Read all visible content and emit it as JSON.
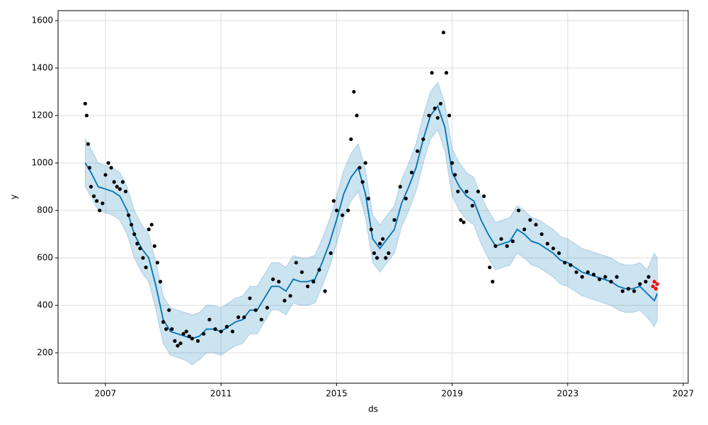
{
  "chart_data": {
    "type": "line",
    "xlabel": "ds",
    "ylabel": "y",
    "xlim": [
      2005.36,
      2027.17
    ],
    "ylim": [
      72,
      1642
    ],
    "xticks": [
      2007,
      2011,
      2015,
      2019,
      2023,
      2027
    ],
    "yticks": [
      200,
      400,
      600,
      800,
      1000,
      1200,
      1400,
      1600
    ],
    "grid": true,
    "band": {
      "color": "#0072B2",
      "x": [
        2006.3,
        2006.5,
        2006.75,
        2007,
        2007.25,
        2007.5,
        2007.75,
        2008,
        2008.25,
        2008.5,
        2008.75,
        2009,
        2009.25,
        2009.5,
        2009.75,
        2010,
        2010.25,
        2010.5,
        2010.75,
        2011,
        2011.25,
        2011.5,
        2011.75,
        2012,
        2012.25,
        2012.5,
        2012.75,
        2013,
        2013.25,
        2013.5,
        2013.75,
        2014,
        2014.25,
        2014.5,
        2014.75,
        2015,
        2015.25,
        2015.5,
        2015.75,
        2016,
        2016.25,
        2016.5,
        2016.75,
        2017,
        2017.25,
        2017.5,
        2017.75,
        2018,
        2018.25,
        2018.5,
        2018.75,
        2019,
        2019.25,
        2019.5,
        2019.75,
        2020,
        2020.25,
        2020.5,
        2020.75,
        2021,
        2021.25,
        2021.5,
        2021.75,
        2022,
        2022.25,
        2022.5,
        2022.75,
        2023,
        2023.25,
        2023.5,
        2023.75,
        2024,
        2024.25,
        2024.5,
        2024.75,
        2025,
        2025.25,
        2025.5,
        2025.75,
        2026,
        2026.1
      ],
      "lower": [
        900,
        860,
        800,
        790,
        780,
        760,
        700,
        600,
        540,
        500,
        380,
        240,
        190,
        180,
        170,
        150,
        170,
        200,
        200,
        190,
        210,
        230,
        240,
        280,
        280,
        330,
        380,
        380,
        360,
        410,
        400,
        400,
        410,
        480,
        560,
        660,
        770,
        840,
        880,
        770,
        580,
        540,
        580,
        620,
        730,
        800,
        880,
        1000,
        1100,
        1140,
        1050,
        860,
        800,
        760,
        740,
        660,
        600,
        550,
        560,
        570,
        620,
        600,
        570,
        560,
        540,
        520,
        490,
        480,
        460,
        440,
        430,
        420,
        410,
        400,
        380,
        370,
        370,
        380,
        350,
        310,
        340
      ],
      "upper": [
        1100,
        1060,
        1000,
        990,
        980,
        960,
        900,
        800,
        740,
        700,
        580,
        440,
        390,
        380,
        370,
        360,
        370,
        400,
        400,
        390,
        410,
        430,
        440,
        480,
        480,
        530,
        580,
        580,
        560,
        610,
        600,
        600,
        610,
        680,
        760,
        860,
        970,
        1040,
        1080,
        970,
        780,
        740,
        780,
        820,
        930,
        1000,
        1080,
        1200,
        1300,
        1340,
        1250,
        1060,
        1000,
        960,
        940,
        860,
        800,
        750,
        760,
        770,
        820,
        800,
        770,
        760,
        740,
        720,
        690,
        680,
        660,
        640,
        630,
        620,
        610,
        600,
        580,
        570,
        570,
        580,
        550,
        620,
        600
      ]
    },
    "series": [
      {
        "color": "#000000",
        "marker": "dot",
        "x": [
          2006.3,
          2006.35,
          2006.4,
          2006.45,
          2006.5,
          2006.6,
          2006.7,
          2006.8,
          2006.9,
          2007,
          2007.1,
          2007.2,
          2007.3,
          2007.4,
          2007.5,
          2007.6,
          2007.7,
          2007.8,
          2007.9,
          2008,
          2008.1,
          2008.2,
          2008.3,
          2008.4,
          2008.5,
          2008.6,
          2008.7,
          2008.8,
          2008.9,
          2009,
          2009.1,
          2009.2,
          2009.3,
          2009.4,
          2009.5,
          2009.6,
          2009.7,
          2009.8,
          2009.9,
          2010,
          2010.2,
          2010.4,
          2010.6,
          2010.8,
          2011,
          2011.2,
          2011.4,
          2011.6,
          2011.8,
          2012,
          2012.2,
          2012.4,
          2012.6,
          2012.8,
          2013,
          2013.2,
          2013.4,
          2013.6,
          2013.8,
          2014,
          2014.2,
          2014.4,
          2014.6,
          2014.8,
          2014.9,
          2015,
          2015.2,
          2015.4,
          2015.5,
          2015.6,
          2015.7,
          2015.8,
          2015.9,
          2016,
          2016.1,
          2016.2,
          2016.3,
          2016.4,
          2016.5,
          2016.6,
          2016.7,
          2016.8,
          2017,
          2017.2,
          2017.4,
          2017.6,
          2017.8,
          2018,
          2018.2,
          2018.3,
          2018.4,
          2018.5,
          2018.6,
          2018.7,
          2018.8,
          2018.9,
          2019,
          2019.1,
          2019.2,
          2019.3,
          2019.4,
          2019.5,
          2019.7,
          2019.9,
          2020.1,
          2020.3,
          2020.4,
          2020.5,
          2020.7,
          2020.9,
          2021.1,
          2021.3,
          2021.5,
          2021.7,
          2021.9,
          2022.1,
          2022.3,
          2022.5,
          2022.7,
          2022.9,
          2023.1,
          2023.3,
          2023.5,
          2023.7,
          2023.9,
          2024.1,
          2024.3,
          2024.5,
          2024.7,
          2024.9,
          2025.1,
          2025.3,
          2025.5,
          2025.7,
          2025.8
        ],
        "values": [
          1250,
          1200,
          1080,
          980,
          900,
          860,
          840,
          800,
          830,
          950,
          1000,
          980,
          920,
          900,
          890,
          920,
          880,
          780,
          740,
          700,
          660,
          640,
          600,
          560,
          720,
          740,
          650,
          580,
          500,
          330,
          300,
          380,
          300,
          250,
          230,
          240,
          280,
          290,
          270,
          260,
          250,
          280,
          340,
          300,
          290,
          310,
          290,
          350,
          350,
          430,
          380,
          340,
          390,
          510,
          500,
          420,
          440,
          580,
          540,
          480,
          500,
          550,
          460,
          620,
          840,
          800,
          780,
          800,
          1100,
          1300,
          1200,
          980,
          920,
          1000,
          850,
          720,
          620,
          600,
          660,
          680,
          600,
          620,
          760,
          900,
          850,
          960,
          1050,
          1100,
          1200,
          1380,
          1230,
          1190,
          1250,
          1550,
          1380,
          1200,
          1000,
          950,
          880,
          760,
          750,
          880,
          820,
          880,
          860,
          560,
          500,
          650,
          680,
          650,
          670,
          800,
          720,
          760,
          740,
          700,
          660,
          640,
          620,
          580,
          570,
          540,
          520,
          540,
          530,
          510,
          520,
          500,
          520,
          460,
          470,
          460,
          490,
          500,
          520
        ]
      },
      {
        "color": "#0072B2",
        "marker": "line",
        "x": [
          2006.3,
          2006.5,
          2006.75,
          2007,
          2007.25,
          2007.5,
          2007.75,
          2008,
          2008.25,
          2008.5,
          2008.75,
          2009,
          2009.25,
          2009.5,
          2009.75,
          2010,
          2010.25,
          2010.5,
          2010.75,
          2011,
          2011.25,
          2011.5,
          2011.75,
          2012,
          2012.25,
          2012.5,
          2012.75,
          2013,
          2013.25,
          2013.5,
          2013.75,
          2014,
          2014.25,
          2014.5,
          2014.75,
          2015,
          2015.25,
          2015.5,
          2015.75,
          2016,
          2016.25,
          2016.5,
          2016.75,
          2017,
          2017.25,
          2017.5,
          2017.75,
          2018,
          2018.25,
          2018.5,
          2018.75,
          2019,
          2019.25,
          2019.5,
          2019.75,
          2020,
          2020.25,
          2020.5,
          2020.75,
          2021,
          2021.25,
          2021.5,
          2021.75,
          2022,
          2022.25,
          2022.5,
          2022.75,
          2023,
          2023.25,
          2023.5,
          2023.75,
          2024,
          2024.25,
          2024.5,
          2024.75,
          2025,
          2025.25,
          2025.5,
          2025.75,
          2026,
          2026.1
        ],
        "values": [
          1000,
          960,
          900,
          890,
          880,
          860,
          800,
          700,
          640,
          600,
          480,
          340,
          290,
          280,
          270,
          260,
          270,
          300,
          300,
          290,
          310,
          330,
          340,
          380,
          380,
          430,
          480,
          480,
          460,
          510,
          500,
          500,
          510,
          580,
          660,
          760,
          870,
          940,
          980,
          870,
          680,
          640,
          680,
          720,
          830,
          900,
          980,
          1100,
          1200,
          1240,
          1150,
          960,
          900,
          860,
          840,
          760,
          700,
          650,
          660,
          670,
          720,
          700,
          670,
          660,
          640,
          620,
          590,
          580,
          560,
          540,
          530,
          520,
          510,
          500,
          480,
          470,
          470,
          480,
          450,
          420,
          450
        ]
      },
      {
        "color": "#ff0000",
        "marker": "dot",
        "x": [
          2025.95,
          2026.0,
          2026.05,
          2026.1
        ],
        "values": [
          480,
          500,
          470,
          490
        ]
      }
    ]
  }
}
